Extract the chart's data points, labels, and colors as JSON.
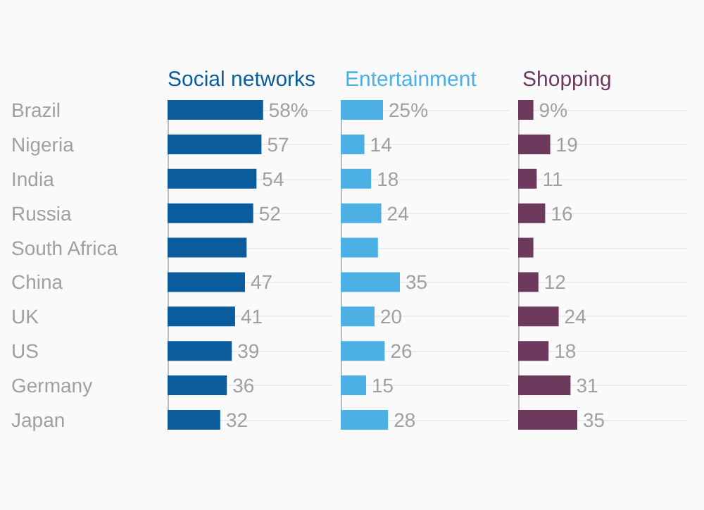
{
  "chart_data": [
    {
      "type": "bar",
      "orientation": "horizontal",
      "grid": "y",
      "tick_labels": "y",
      "title": "Social networks",
      "color": "#0b5c9c",
      "xlim": [
        0,
        100
      ],
      "categories": [
        "Brazil",
        "Nigeria",
        "India",
        "Russia",
        "South Africa",
        "China",
        "UK",
        "US",
        "Germany",
        "Japan"
      ],
      "values": [
        58,
        57,
        54,
        52,
        48,
        47,
        41,
        39,
        36,
        32
      ],
      "value_labels": [
        "58%",
        "57",
        "54",
        "52",
        null,
        "47",
        "41",
        "39",
        "36",
        "32"
      ]
    },
    {
      "type": "bar",
      "orientation": "horizontal",
      "grid": "y",
      "tick_labels": false,
      "title": "Entertainment",
      "color": "#4db0e4",
      "xlim": [
        0,
        100
      ],
      "categories": [
        null,
        null,
        null,
        null,
        null,
        null,
        null,
        null,
        null,
        null
      ],
      "values": [
        25,
        14,
        18,
        24,
        22,
        35,
        20,
        26,
        15,
        28
      ],
      "value_labels": [
        "25%",
        "14",
        "18",
        "24",
        null,
        "35",
        "20",
        "26",
        "15",
        "28"
      ]
    },
    {
      "type": "bar",
      "orientation": "horizontal",
      "grid": "y",
      "tick_labels": false,
      "title": "Shopping",
      "color": "#6d3a5d",
      "xlim": [
        0,
        100
      ],
      "categories": [
        null,
        null,
        null,
        null,
        null,
        null,
        null,
        null,
        null,
        null
      ],
      "values": [
        9,
        19,
        11,
        16,
        9,
        12,
        24,
        18,
        31,
        35
      ],
      "value_labels": [
        "9%",
        "19",
        "11",
        "16",
        null,
        "12",
        "24",
        "18",
        "31",
        "35"
      ]
    }
  ]
}
